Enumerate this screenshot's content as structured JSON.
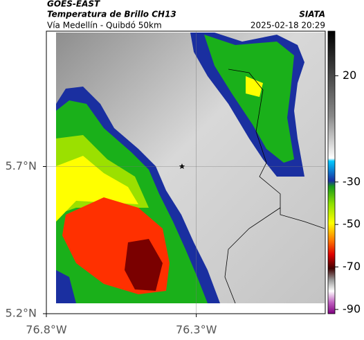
{
  "header": {
    "title": "GOES-EAST",
    "subtitle": "Temperatura de Brillo CH13",
    "route": "Vía Medellín - Quibdó 50km",
    "timestamp": "2025-02-18 20:29",
    "source": "SIATA"
  },
  "map": {
    "xlim": [
      -76.8,
      -75.87
    ],
    "ylim": [
      5.2,
      6.16
    ],
    "xticks": [
      {
        "value": -76.8,
        "label": "76.8°W"
      },
      {
        "value": -76.3,
        "label": "76.3°W"
      }
    ],
    "yticks": [
      {
        "value": 5.2,
        "label": "5.2°N"
      },
      {
        "value": 5.7,
        "label": "5.7°N"
      }
    ],
    "grid": true
  },
  "colorbar": {
    "lim": [
      -92,
      41
    ],
    "ticks": [
      20,
      -30,
      -50,
      -70,
      -90
    ]
  }
}
